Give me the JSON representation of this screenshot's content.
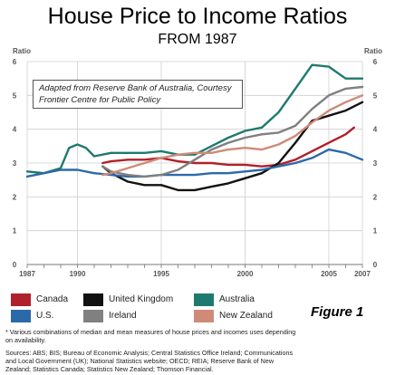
{
  "title": "House Price to Income Ratios",
  "subtitle": "FROM 1987",
  "annotation": {
    "line1": "Adapted from Reserve Bank of Australia, Courtesy",
    "line2": "Frontier Centre for Public Policy"
  },
  "figure_label": "Figure 1",
  "footnote": {
    "line1": "* Various combinations of median and mean measures of house prices and incomes uses depending",
    "line2": "on availability."
  },
  "sources": {
    "line1": "Sources: ABS; BIS; Bureau of Economic Analysis; Central Statistics Office Ireland; Communications",
    "line2": "and Local Government (UK); National Statistics website; OECD; REIA; Reserve Bank of New",
    "line3": "Zealand; Statistics Canada; Statistics New Zealand; Thomson Financial."
  },
  "chart_data": {
    "type": "line",
    "title": "House Price to Income Ratios",
    "subtitle": "FROM 1987",
    "ylabel_left": "Ratio",
    "ylabel_right": "Ratio",
    "xlim": [
      1987,
      2007
    ],
    "ylim": [
      0,
      6
    ],
    "yticks": [
      0,
      1,
      2,
      3,
      4,
      5,
      6
    ],
    "xticks": [
      {
        "value": 1987,
        "label": "1987",
        "color": "#c0272d"
      },
      {
        "value": 1990,
        "label": "1990",
        "color": "#555555"
      },
      {
        "value": 1995,
        "label": "1995",
        "color": "#555555"
      },
      {
        "value": 2000,
        "label": "2000",
        "color": "#555555"
      },
      {
        "value": 2005,
        "label": "2005",
        "color": "#555555"
      },
      {
        "value": 2007,
        "label": "2007",
        "color": "#c0272d"
      }
    ],
    "grid": true,
    "legend_position": "bottom",
    "series": [
      {
        "name": "Canada",
        "color": "#b0202a",
        "points": [
          [
            1991.5,
            3.0
          ],
          [
            1992,
            3.05
          ],
          [
            1993,
            3.1
          ],
          [
            1994,
            3.1
          ],
          [
            1995,
            3.15
          ],
          [
            1996,
            3.05
          ],
          [
            1997,
            3.0
          ],
          [
            1998,
            3.0
          ],
          [
            1999,
            2.95
          ],
          [
            2000,
            2.95
          ],
          [
            2001,
            2.9
          ],
          [
            2002,
            2.95
          ],
          [
            2003,
            3.1
          ],
          [
            2004,
            3.35
          ],
          [
            2005,
            3.6
          ],
          [
            2006,
            3.85
          ],
          [
            2006.5,
            4.05
          ]
        ]
      },
      {
        "name": "United Kingdom",
        "color": "#111111",
        "points": [
          [
            1991.5,
            2.9
          ],
          [
            1992,
            2.7
          ],
          [
            1993,
            2.45
          ],
          [
            1994,
            2.35
          ],
          [
            1995,
            2.35
          ],
          [
            1996,
            2.2
          ],
          [
            1997,
            2.2
          ],
          [
            1998,
            2.3
          ],
          [
            1999,
            2.4
          ],
          [
            2000,
            2.55
          ],
          [
            2001,
            2.7
          ],
          [
            2002,
            3.0
          ],
          [
            2003,
            3.6
          ],
          [
            2004,
            4.25
          ],
          [
            2005,
            4.4
          ],
          [
            2006,
            4.55
          ],
          [
            2007,
            4.8
          ]
        ]
      },
      {
        "name": "Australia",
        "color": "#1e7a6e",
        "points": [
          [
            1987,
            2.75
          ],
          [
            1988,
            2.7
          ],
          [
            1989,
            2.85
          ],
          [
            1989.5,
            3.45
          ],
          [
            1990,
            3.55
          ],
          [
            1990.5,
            3.45
          ],
          [
            1991,
            3.2
          ],
          [
            1992,
            3.3
          ],
          [
            1993,
            3.3
          ],
          [
            1994,
            3.3
          ],
          [
            1995,
            3.35
          ],
          [
            1996,
            3.25
          ],
          [
            1997,
            3.25
          ],
          [
            1998,
            3.5
          ],
          [
            1999,
            3.75
          ],
          [
            2000,
            3.95
          ],
          [
            2001,
            4.05
          ],
          [
            2002,
            4.5
          ],
          [
            2003,
            5.2
          ],
          [
            2004,
            5.9
          ],
          [
            2005,
            5.85
          ],
          [
            2006,
            5.5
          ],
          [
            2007,
            5.5
          ]
        ]
      },
      {
        "name": "U.S.",
        "color": "#2b6aa8",
        "points": [
          [
            1987,
            2.6
          ],
          [
            1988,
            2.7
          ],
          [
            1989,
            2.8
          ],
          [
            1990,
            2.8
          ],
          [
            1991,
            2.7
          ],
          [
            1992,
            2.65
          ],
          [
            1993,
            2.6
          ],
          [
            1994,
            2.6
          ],
          [
            1995,
            2.65
          ],
          [
            1996,
            2.65
          ],
          [
            1997,
            2.65
          ],
          [
            1998,
            2.7
          ],
          [
            1999,
            2.7
          ],
          [
            2000,
            2.75
          ],
          [
            2001,
            2.8
          ],
          [
            2002,
            2.9
          ],
          [
            2003,
            3.0
          ],
          [
            2004,
            3.15
          ],
          [
            2005,
            3.4
          ],
          [
            2006,
            3.3
          ],
          [
            2007,
            3.1
          ]
        ]
      },
      {
        "name": "Ireland",
        "color": "#808080",
        "points": [
          [
            1991.5,
            2.9
          ],
          [
            1992,
            2.75
          ],
          [
            1993,
            2.65
          ],
          [
            1994,
            2.6
          ],
          [
            1995,
            2.65
          ],
          [
            1996,
            2.8
          ],
          [
            1997,
            3.1
          ],
          [
            1998,
            3.4
          ],
          [
            1999,
            3.6
          ],
          [
            2000,
            3.75
          ],
          [
            2001,
            3.85
          ],
          [
            2002,
            3.9
          ],
          [
            2003,
            4.1
          ],
          [
            2004,
            4.6
          ],
          [
            2005,
            5.0
          ],
          [
            2006,
            5.2
          ],
          [
            2007,
            5.25
          ]
        ]
      },
      {
        "name": "New Zealand",
        "color": "#d08a78",
        "points": [
          [
            1991.5,
            2.65
          ],
          [
            1992,
            2.7
          ],
          [
            1993,
            2.85
          ],
          [
            1994,
            3.0
          ],
          [
            1995,
            3.15
          ],
          [
            1996,
            3.25
          ],
          [
            1997,
            3.3
          ],
          [
            1998,
            3.3
          ],
          [
            1999,
            3.4
          ],
          [
            2000,
            3.45
          ],
          [
            2001,
            3.4
          ],
          [
            2002,
            3.55
          ],
          [
            2003,
            3.8
          ],
          [
            2004,
            4.2
          ],
          [
            2005,
            4.55
          ],
          [
            2006,
            4.8
          ],
          [
            2007,
            5.0
          ]
        ]
      }
    ]
  }
}
